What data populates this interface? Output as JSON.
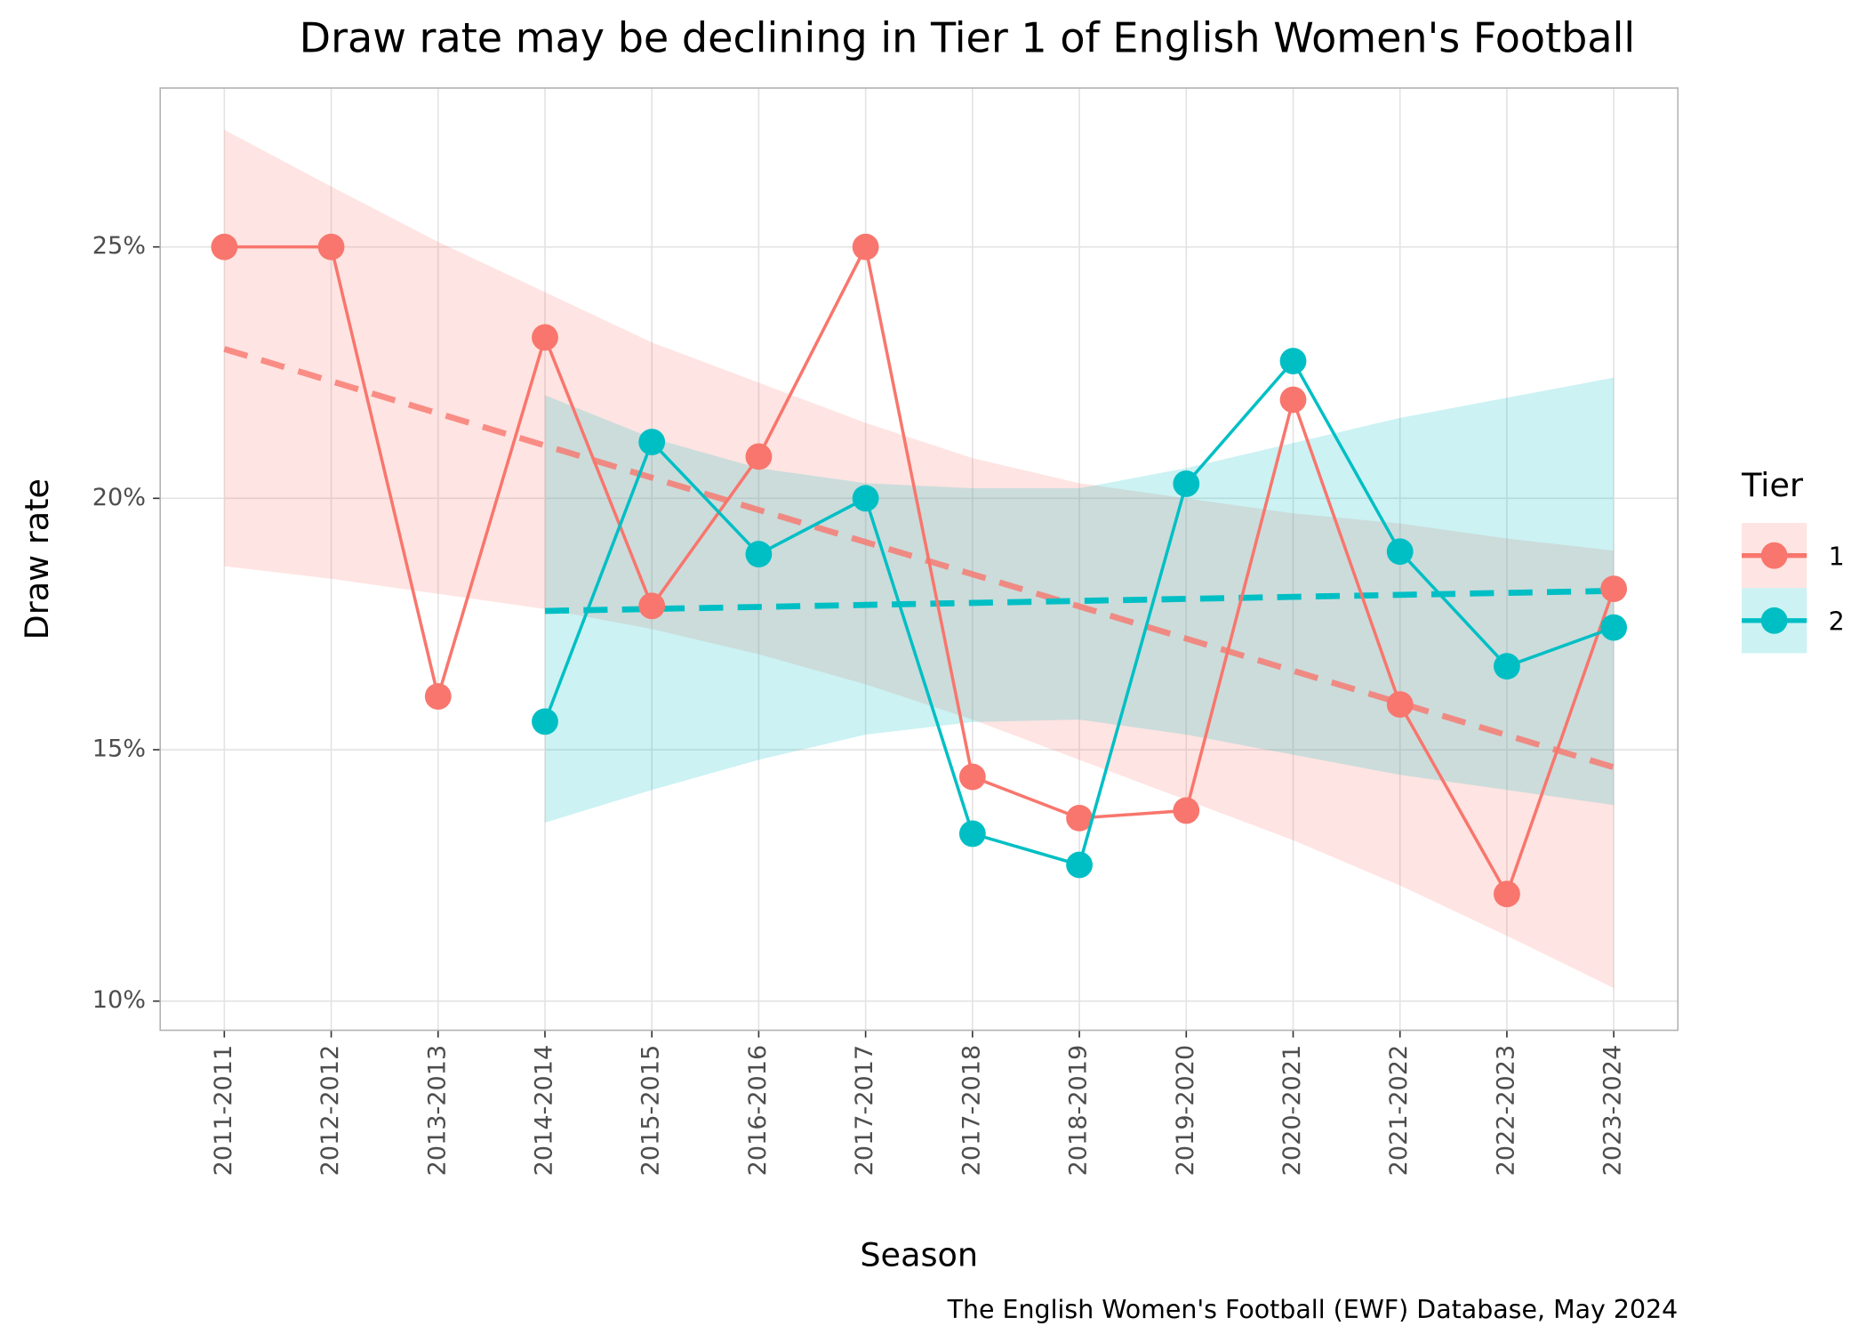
{
  "chart_data": {
    "type": "line",
    "title": "Draw rate may be declining in Tier 1 of English Women's Football",
    "x_label": "Season",
    "y_label": "Draw rate",
    "caption": "The English Women's Football (EWF) Database, May 2024",
    "legend_title": "Tier",
    "legend_position": "right",
    "grid": true,
    "categories": [
      "2011-2011",
      "2012-2012",
      "2013-2013",
      "2014-2014",
      "2015-2015",
      "2016-2016",
      "2017-2017",
      "2017-2018",
      "2018-2019",
      "2019-2020",
      "2020-2021",
      "2021-2022",
      "2022-2023",
      "2023-2024"
    ],
    "ylim": [
      9.42,
      28.16
    ],
    "yticks": [
      {
        "value": 10,
        "label": "10%"
      },
      {
        "value": 15,
        "label": "15%"
      },
      {
        "value": 20,
        "label": "20%"
      },
      {
        "value": 25,
        "label": "25%"
      }
    ],
    "series": [
      {
        "name": "1",
        "color": "#F8766D",
        "values": [
          25,
          25,
          16.06,
          23.2,
          17.86,
          20.83,
          25,
          14.46,
          13.64,
          13.79,
          21.96,
          15.9,
          12.13,
          18.2
        ],
        "trend": [
          22.97,
          22.33,
          21.69,
          21.05,
          20.41,
          19.77,
          19.13,
          18.49,
          17.85,
          17.21,
          16.57,
          15.93,
          15.29,
          14.65
        ],
        "ci_upper": [
          27.33,
          26.2,
          25.1,
          24.1,
          23.1,
          22.3,
          21.5,
          20.8,
          20.3,
          20.0,
          19.7,
          19.5,
          19.2,
          18.96
        ],
        "ci_lower": [
          18.65,
          18.4,
          18.1,
          17.8,
          17.4,
          16.9,
          16.3,
          15.6,
          14.8,
          14.0,
          13.2,
          12.3,
          11.3,
          10.26
        ]
      },
      {
        "name": "2",
        "color": "#00BFC4",
        "values": [
          null,
          null,
          null,
          15.56,
          21.12,
          18.89,
          20.0,
          13.33,
          12.71,
          20.29,
          22.73,
          18.94,
          16.66,
          17.43
        ],
        "trend": [
          null,
          null,
          null,
          17.76,
          17.8,
          17.84,
          17.88,
          17.92,
          17.96,
          18.0,
          18.04,
          18.08,
          18.12,
          18.16
        ],
        "ci_upper": [
          null,
          null,
          null,
          22.05,
          21.2,
          20.6,
          20.3,
          20.2,
          20.2,
          20.6,
          21.1,
          21.6,
          22.0,
          22.4
        ],
        "ci_lower": [
          null,
          null,
          null,
          13.55,
          14.2,
          14.8,
          15.3,
          15.55,
          15.6,
          15.3,
          14.9,
          14.5,
          14.2,
          13.9
        ]
      }
    ]
  }
}
